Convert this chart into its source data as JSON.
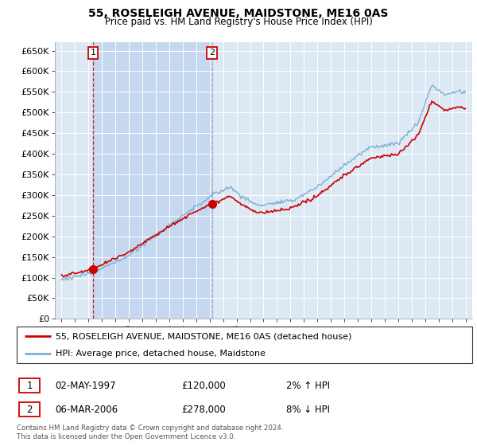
{
  "title": "55, ROSELEIGH AVENUE, MAIDSTONE, ME16 0AS",
  "subtitle": "Price paid vs. HM Land Registry's House Price Index (HPI)",
  "ylabel_ticks": [
    "£0",
    "£50K",
    "£100K",
    "£150K",
    "£200K",
    "£250K",
    "£300K",
    "£350K",
    "£400K",
    "£450K",
    "£500K",
    "£550K",
    "£600K",
    "£650K"
  ],
  "ytick_values": [
    0,
    50000,
    100000,
    150000,
    200000,
    250000,
    300000,
    350000,
    400000,
    450000,
    500000,
    550000,
    600000,
    650000
  ],
  "xlim": [
    1994.5,
    2025.5
  ],
  "ylim": [
    0,
    670000
  ],
  "legend_line1": "55, ROSELEIGH AVENUE, MAIDSTONE, ME16 0AS (detached house)",
  "legend_line2": "HPI: Average price, detached house, Maidstone",
  "sale1_date": "02-MAY-1997",
  "sale1_price": "£120,000",
  "sale1_hpi": "2% ↑ HPI",
  "sale2_date": "06-MAR-2006",
  "sale2_price": "£278,000",
  "sale2_hpi": "8% ↓ HPI",
  "footer": "Contains HM Land Registry data © Crown copyright and database right 2024.\nThis data is licensed under the Open Government Licence v3.0.",
  "hpi_color": "#7bafd4",
  "price_color": "#cc0000",
  "bg_color": "#ffffff",
  "plot_bg_color": "#dde8f5",
  "shade_color": "#c5d8ef",
  "grid_color": "#aaaacc",
  "sale1_x": 1997.33,
  "sale1_y": 120000,
  "sale2_x": 2006.17,
  "sale2_y": 278000,
  "sale1_vline_color": "#cc0000",
  "sale2_vline_color": "#aaaaaa"
}
